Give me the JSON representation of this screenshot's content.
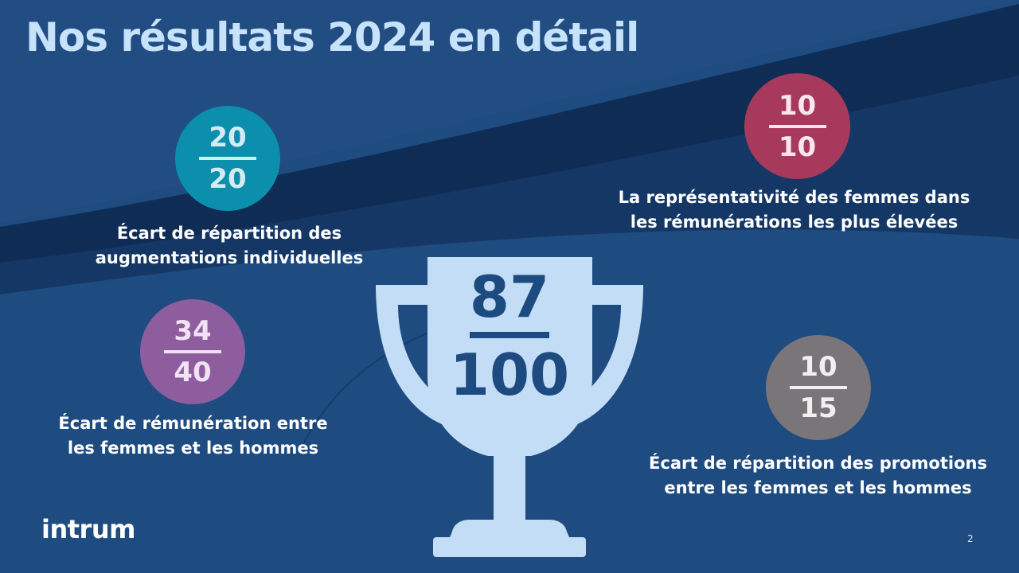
{
  "slide": {
    "title": "Nos résultats 2024 en détail",
    "page_number": "2",
    "logo_text": "intrum"
  },
  "overall_score": {
    "numerator": "87",
    "denominator": "100"
  },
  "indicators": {
    "individual_raises": {
      "numerator": "20",
      "denominator": "20",
      "label_line1": "Écart de répartition des",
      "label_line2": "augmentations individuelles",
      "color": "#0b8fad"
    },
    "top_salaries": {
      "numerator": "10",
      "denominator": "10",
      "label_line1": "La représentativité des femmes dans",
      "label_line2": "les rémunérations les plus élevées",
      "color": "#a73a5c"
    },
    "pay_gap": {
      "numerator": "34",
      "denominator": "40",
      "label_line1": "Écart de rémunération entre",
      "label_line2": "les femmes et les hommes",
      "color": "#8e5d9e"
    },
    "promotions": {
      "numerator": "10",
      "denominator": "15",
      "label_line1": "Écart de répartition des promotions",
      "label_line2": "entre les femmes et les hommes",
      "color": "#7a7579"
    }
  },
  "colors": {
    "background": "#1e4b80",
    "title": "#c7e2fb",
    "trophy": "#c3ddf7"
  },
  "icons": [
    "trophy-icon"
  ]
}
